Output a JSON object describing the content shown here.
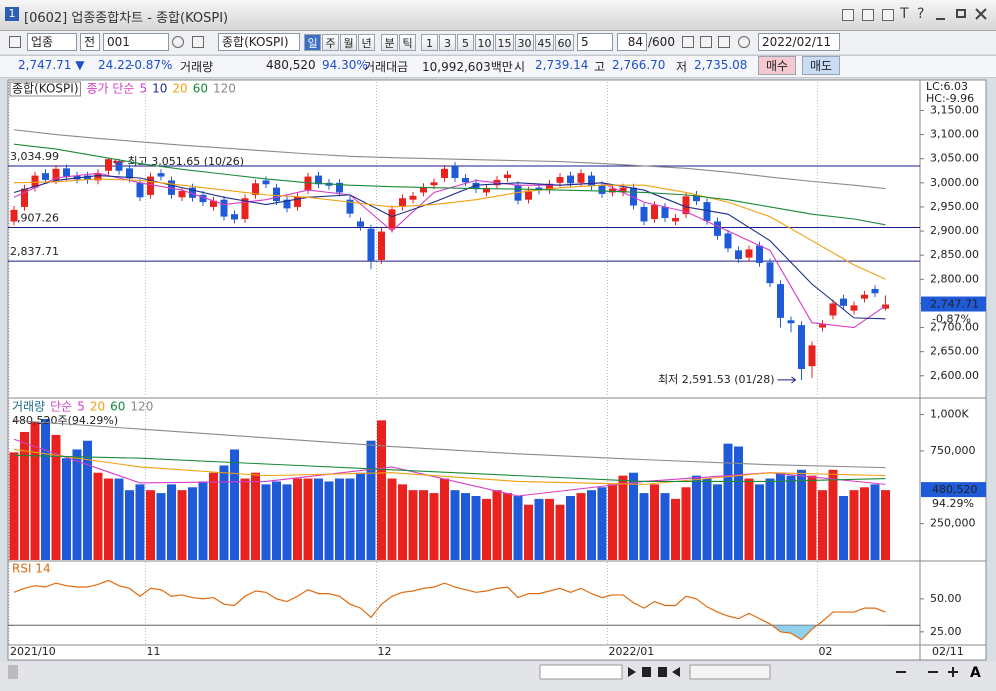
{
  "window": {
    "number": "1",
    "title": "[0602] 업종종합차트 - 종합(KOSPI)",
    "tools": [
      "T",
      "?"
    ]
  },
  "toolbar": {
    "market": "업종",
    "mode": "전",
    "code": "001",
    "name": "종합(KOSPI)",
    "periods": [
      "일",
      "주",
      "월",
      "년",
      "분",
      "틱"
    ],
    "minutes": [
      "1",
      "3",
      "5",
      "10",
      "15",
      "30",
      "45",
      "60"
    ],
    "custom": "5",
    "count": "84",
    "max": "/600",
    "date": "2022/02/11"
  },
  "info": {
    "price": "2,747.71 ▼",
    "change": "24.22",
    "rate": "-0.87%",
    "volume_label": "거래량",
    "volume": "480,520",
    "volume_ratio": "94.30%",
    "amount_label": "거래대금",
    "amount": "10,992,603백만",
    "open_label": "시",
    "open": "2,739.14",
    "high_label": "고",
    "high": "2,766.70",
    "low_label": "저",
    "low": "2,735.08",
    "buy": "매수",
    "sell": "매도"
  },
  "footer": {
    "zoom": "A"
  },
  "chart_data": [
    {
      "type": "candlestick",
      "title": "종합(KOSPI)",
      "legend_prefix": "종가 단순",
      "categories": [
        "2021/10",
        null,
        null,
        null,
        null,
        null,
        null,
        null,
        null,
        null,
        null,
        null,
        null,
        "11",
        null,
        null,
        null,
        null,
        null,
        null,
        null,
        null,
        null,
        null,
        null,
        null,
        null,
        null,
        null,
        null,
        null,
        null,
        null,
        null,
        null,
        "12",
        null,
        null,
        null,
        null,
        null,
        null,
        null,
        null,
        null,
        null,
        null,
        null,
        null,
        null,
        null,
        null,
        null,
        null,
        null,
        null,
        null,
        "2022/01",
        null,
        null,
        null,
        null,
        null,
        null,
        null,
        null,
        null,
        null,
        null,
        null,
        null,
        null,
        null,
        null,
        null,
        null,
        null,
        "02",
        null,
        null,
        null,
        null,
        null,
        null
      ],
      "x_end_label": "02/11",
      "open": [
        2920,
        2950,
        2990,
        3020,
        3005,
        3030,
        3015,
        3015,
        3005,
        3025,
        3045,
        3030,
        3000,
        2975,
        3020,
        3005,
        2970,
        2990,
        2975,
        2950,
        2965,
        2935,
        2925,
        2975,
        3005,
        2990,
        2965,
        2950,
        2985,
        3015,
        3000,
        3000,
        2965,
        2920,
        2905,
        2840,
        2905,
        2950,
        2965,
        2980,
        2995,
        3010,
        3035,
        3010,
        3000,
        2980,
        2995,
        3010,
        2995,
        2965,
        2990,
        2985,
        3000,
        3015,
        3000,
        3015,
        2995,
        2980,
        2980,
        2990,
        2950,
        2925,
        2950,
        2920,
        2935,
        2975,
        2960,
        2920,
        2895,
        2860,
        2845,
        2870,
        2835,
        2790,
        2715,
        2705,
        2620,
        2700,
        2725,
        2760,
        2735,
        2760,
        2780,
        2739.14
      ],
      "high": [
        2952,
        2996,
        3023,
        3028,
        3037,
        3038,
        3023,
        3023,
        3028,
        3051.65,
        3050,
        3038,
        3008,
        3021,
        3028,
        3013,
        2991,
        2998,
        2983,
        2971,
        2973,
        2943,
        2976,
        3007,
        3013,
        2998,
        2973,
        2979,
        3021,
        3023,
        3008,
        3008,
        2973,
        2928,
        2913,
        2907,
        2953,
        2976,
        2981,
        2999,
        3009,
        3037,
        3043,
        3018,
        3008,
        2997,
        3014,
        3025,
        3003,
        2992,
        2998,
        3006,
        3020,
        3023,
        3028,
        3023,
        3003,
        2996,
        2998,
        2998,
        2958,
        2962,
        2958,
        2935,
        2980,
        2983,
        2968,
        2928,
        2903,
        2868,
        2870,
        2878,
        2843,
        2798,
        2723,
        2713,
        2671,
        2715,
        2758,
        2768,
        2754,
        2776,
        2788,
        2766.7
      ],
      "low": [
        2912,
        2942,
        2982,
        2998,
        2997,
        3005,
        2999,
        2998,
        2997,
        3017,
        3017,
        3001,
        2962,
        2967,
        3005,
        2967,
        2962,
        2961,
        2952,
        2942,
        2922,
        2916,
        2917,
        2967,
        2989,
        2954,
        2939,
        2942,
        2977,
        2989,
        2986,
        2972,
        2928,
        2901,
        2821,
        2832,
        2897,
        2942,
        2957,
        2972,
        2987,
        3002,
        3002,
        2993,
        2979,
        2972,
        2987,
        3002,
        2955,
        2957,
        2976,
        2977,
        2992,
        2991,
        2992,
        2985,
        2969,
        2972,
        2972,
        2945,
        2912,
        2917,
        2919,
        2912,
        2927,
        2954,
        2913,
        2882,
        2856,
        2834,
        2837,
        2826,
        2784,
        2700,
        2690,
        2591.53,
        2595,
        2692,
        2717,
        2737,
        2727,
        2752,
        2763,
        2735.08
      ],
      "close": [
        2944,
        2988,
        3015,
        3006,
        3029,
        3013,
        3007,
        3006,
        3020,
        3049,
        3025,
        3009,
        2970,
        3013,
        3013,
        2975,
        2983,
        2969,
        2960,
        2963,
        2930,
        2924,
        2968,
        2999,
        2997,
        2962,
        2947,
        2971,
        3013,
        2997,
        2994,
        2980,
        2936,
        2909,
        2839,
        2899,
        2945,
        2968,
        2973,
        2991,
        3001,
        3029,
        3010,
        3001,
        2987,
        2989,
        3006,
        3017,
        2963,
        2984,
        2984,
        2998,
        3012,
        2999,
        3020,
        2993,
        2977,
        2988,
        2990,
        2953,
        2920,
        2954,
        2927,
        2927,
        2972,
        2962,
        2921,
        2890,
        2864,
        2842,
        2862,
        2834,
        2792,
        2720,
        2709,
        2614,
        2663,
        2707,
        2750,
        2745,
        2746,
        2768,
        2771,
        2747.71
      ],
      "up_color": "#e8231f",
      "down_color": "#1f5bd8",
      "ylim": [
        2556,
        3209
      ],
      "yticks": [
        {
          "value": 2600,
          "label": "2,600.00"
        },
        {
          "value": 2650,
          "label": "2,650.00"
        },
        {
          "value": 2700,
          "label": "2,700.00"
        },
        {
          "value": 2750,
          "label": "2,750.00"
        },
        {
          "value": 2800,
          "label": "2,800.00"
        },
        {
          "value": 2850,
          "label": "2,850.00"
        },
        {
          "value": 2900,
          "label": "2,900.00"
        },
        {
          "value": 2950,
          "label": "2,950.00"
        },
        {
          "value": 3000,
          "label": "3,000.00"
        },
        {
          "value": 3050,
          "label": "3,050.00"
        },
        {
          "value": 3100,
          "label": "3,100.00"
        },
        {
          "value": 3150,
          "label": "3,150.00"
        }
      ],
      "series": [
        {
          "name": "5",
          "color": "#d63cc8",
          "x": [
            0,
            4,
            8,
            12,
            16,
            20,
            24,
            28,
            32,
            36,
            40,
            44,
            48,
            52,
            56,
            60,
            64,
            68,
            72,
            76,
            80,
            83
          ],
          "values": [
            2970,
            3010,
            3020,
            3000,
            2985,
            2955,
            2965,
            2985,
            2975,
            2900,
            2980,
            3005,
            2995,
            2995,
            3000,
            2960,
            2940,
            2900,
            2860,
            2710,
            2700,
            2745
          ]
        },
        {
          "name": "10",
          "color": "#1c2e8c",
          "x": [
            0,
            4,
            8,
            12,
            16,
            20,
            24,
            28,
            32,
            36,
            40,
            44,
            48,
            52,
            56,
            60,
            64,
            68,
            72,
            76,
            80,
            83
          ],
          "values": [
            2980,
            3005,
            3015,
            3010,
            2990,
            2970,
            2955,
            2970,
            2975,
            2930,
            2960,
            2995,
            3000,
            2995,
            3000,
            2985,
            2950,
            2935,
            2880,
            2790,
            2720,
            2718
          ]
        },
        {
          "name": "20",
          "color": "#f0a010",
          "x": [
            0,
            4,
            8,
            12,
            16,
            20,
            24,
            28,
            32,
            36,
            40,
            44,
            48,
            52,
            56,
            60,
            64,
            68,
            72,
            76,
            80,
            83
          ],
          "values": [
            3000,
            3002,
            3008,
            3005,
            2995,
            2985,
            2975,
            2970,
            2960,
            2950,
            2955,
            2965,
            2980,
            2990,
            2995,
            2995,
            2980,
            2960,
            2930,
            2880,
            2830,
            2800
          ]
        },
        {
          "name": "60",
          "color": "#1a8a3a",
          "x": [
            0,
            4,
            8,
            12,
            16,
            20,
            24,
            28,
            32,
            36,
            40,
            44,
            48,
            52,
            56,
            60,
            64,
            68,
            72,
            76,
            80,
            83
          ],
          "values": [
            3080,
            3070,
            3055,
            3040,
            3028,
            3018,
            3008,
            3000,
            2995,
            2992,
            2990,
            2988,
            2987,
            2985,
            2983,
            2980,
            2975,
            2965,
            2950,
            2935,
            2925,
            2913
          ]
        },
        {
          "name": "120",
          "color": "#8a8a8a",
          "x": [
            0,
            4,
            8,
            12,
            16,
            20,
            24,
            28,
            32,
            36,
            40,
            44,
            48,
            52,
            56,
            60,
            64,
            68,
            72,
            76,
            80,
            83
          ],
          "values": [
            3110,
            3100,
            3092,
            3085,
            3078,
            3072,
            3066,
            3060,
            3055,
            3052,
            3050,
            3048,
            3046,
            3044,
            3040,
            3035,
            3030,
            3022,
            3012,
            3003,
            2995,
            2988
          ]
        }
      ],
      "hlines": [
        {
          "value": 3034.99,
          "label": "3,034.99"
        },
        {
          "value": 2907.26,
          "label": "2,907.26"
        },
        {
          "value": 2837.71,
          "label": "2,837.71"
        }
      ],
      "high_note": "최고 3,051.65 (10/26)",
      "low_note": "최저 2,591.53 (01/28)",
      "last_label": "2,747.71",
      "last_rate": "-0.87%",
      "lc": "LC:6.03",
      "hc": "HC:-9.96"
    },
    {
      "type": "bar",
      "title": "거래량",
      "legend_prefix": "단순",
      "current_label": "480,520주(94.29%)",
      "values": [
        740000,
        880000,
        950000,
        970000,
        860000,
        700000,
        760000,
        820000,
        600000,
        560000,
        560000,
        480000,
        520000,
        480000,
        460000,
        520000,
        480000,
        500000,
        540000,
        600000,
        650000,
        760000,
        560000,
        600000,
        520000,
        540000,
        520000,
        560000,
        560000,
        560000,
        540000,
        560000,
        560000,
        600000,
        820000,
        960000,
        560000,
        520000,
        480000,
        480000,
        460000,
        560000,
        480000,
        460000,
        440000,
        420000,
        480000,
        460000,
        440000,
        380000,
        420000,
        420000,
        380000,
        440000,
        460000,
        480000,
        500000,
        520000,
        580000,
        600000,
        460000,
        520000,
        460000,
        420000,
        500000,
        580000,
        560000,
        520000,
        800000,
        780000,
        560000,
        520000,
        560000,
        600000,
        580000,
        620000,
        580000,
        480000,
        620000,
        440000,
        480000,
        500000,
        520000,
        480520
      ],
      "ylim": [
        0,
        1100000
      ],
      "yticks": [
        {
          "value": 250000,
          "label": "250,000"
        },
        {
          "value": 750000,
          "label": "750,000"
        },
        {
          "value": 1000000,
          "label": "1,000K"
        }
      ],
      "series": [
        {
          "name": "5",
          "color": "#d63cc8",
          "x": [
            0,
            12,
            24,
            36,
            48,
            60,
            72,
            83
          ],
          "values": [
            830000,
            530000,
            540000,
            640000,
            440000,
            540000,
            600000,
            520000
          ]
        },
        {
          "name": "20",
          "color": "#f0a010",
          "x": [
            0,
            12,
            24,
            36,
            48,
            60,
            72,
            83
          ],
          "values": [
            760000,
            640000,
            580000,
            600000,
            540000,
            520000,
            600000,
            580000
          ]
        },
        {
          "name": "60",
          "color": "#1a8a3a",
          "x": [
            0,
            12,
            24,
            36,
            48,
            60,
            72,
            83
          ],
          "values": [
            720000,
            700000,
            660000,
            620000,
            580000,
            540000,
            540000,
            560000
          ]
        },
        {
          "name": "120",
          "color": "#8a8a8a",
          "x": [
            0,
            12,
            24,
            36,
            48,
            60,
            72,
            83
          ],
          "values": [
            960000,
            900000,
            840000,
            780000,
            730000,
            690000,
            655000,
            635000
          ]
        }
      ],
      "last_label": "480,520",
      "last_rate": "94.29%"
    },
    {
      "type": "line",
      "title": "RSI 14",
      "color": "#e06a10",
      "fill_color": "#8fd0ea",
      "threshold": 30,
      "values": [
        55,
        58,
        60,
        59,
        62,
        60,
        59,
        59,
        61,
        64,
        60,
        58,
        52,
        58,
        57,
        52,
        53,
        51,
        50,
        51,
        46,
        45,
        52,
        56,
        55,
        50,
        48,
        52,
        57,
        54,
        54,
        52,
        46,
        43,
        36,
        46,
        52,
        55,
        56,
        58,
        59,
        62,
        59,
        57,
        55,
        56,
        58,
        59,
        51,
        54,
        54,
        56,
        58,
        55,
        58,
        54,
        51,
        53,
        53,
        47,
        43,
        48,
        45,
        45,
        52,
        50,
        44,
        40,
        37,
        35,
        39,
        35,
        31,
        25,
        24,
        19,
        27,
        33,
        40,
        40,
        40,
        43,
        43,
        40
      ],
      "ylim": [
        15,
        78
      ],
      "yticks": [
        {
          "value": 25,
          "label": "25.00"
        },
        {
          "value": 50,
          "label": "50.00"
        }
      ]
    }
  ]
}
